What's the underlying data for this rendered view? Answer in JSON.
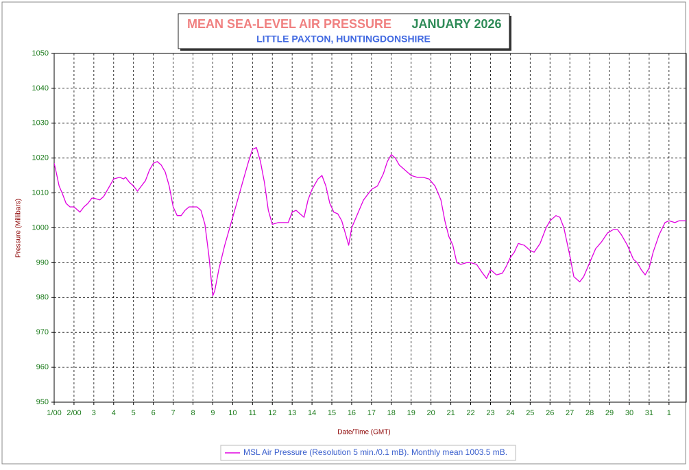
{
  "chart_data": {
    "type": "line",
    "title": "MEAN SEA-LEVEL AIR PRESSURE",
    "period": "JANUARY 2026",
    "subtitle": "LITTLE PAXTON, HUNTINGDONSHIRE",
    "x_label": "Date/Time (GMT)",
    "y_label": "Pressure (Millibars)",
    "xlim": [
      1,
      32.87
    ],
    "ylim": [
      950,
      1050
    ],
    "xticks": [
      {
        "value": 1,
        "label": "1/00"
      },
      {
        "value": 2,
        "label": "2/00"
      },
      3,
      4,
      5,
      6,
      7,
      8,
      9,
      10,
      11,
      12,
      13,
      14,
      15,
      16,
      17,
      18,
      19,
      20,
      21,
      22,
      23,
      24,
      25,
      26,
      27,
      28,
      29,
      30,
      31,
      {
        "value": 32,
        "label": "1"
      }
    ],
    "yticks": [
      950,
      960,
      970,
      980,
      990,
      1000,
      1010,
      1020,
      1030,
      1040,
      1050
    ],
    "grid": true,
    "series": [
      {
        "name": "MSL Air Pressure (Resolution 5 min./0.1 mB). Monthly mean 1003.5 mB.",
        "color": "#e000e0",
        "x": [
          1.0,
          1.1,
          1.25,
          1.4,
          1.6,
          1.8,
          2.0,
          2.2,
          2.3,
          2.5,
          2.7,
          2.9,
          3.0,
          3.3,
          3.5,
          3.7,
          3.9,
          4.0,
          4.3,
          4.5,
          4.6,
          4.8,
          5.0,
          5.2,
          5.4,
          5.6,
          5.8,
          6.0,
          6.2,
          6.4,
          6.6,
          6.8,
          7.0,
          7.2,
          7.4,
          7.6,
          7.8,
          8.0,
          8.2,
          8.4,
          8.6,
          8.8,
          9.0,
          9.1,
          9.3,
          9.6,
          9.9,
          10.2,
          10.5,
          10.8,
          11.0,
          11.2,
          11.4,
          11.6,
          11.8,
          12.0,
          12.3,
          12.6,
          12.8,
          13.0,
          13.2,
          13.4,
          13.6,
          13.8,
          14.0,
          14.3,
          14.5,
          14.7,
          14.9,
          15.1,
          15.3,
          15.5,
          15.7,
          15.85,
          16.0,
          16.3,
          16.6,
          17.0,
          17.3,
          17.6,
          17.8,
          18.0,
          18.2,
          18.4,
          18.7,
          19.0,
          19.3,
          19.6,
          19.9,
          20.2,
          20.5,
          20.7,
          20.9,
          21.1,
          21.3,
          21.5,
          21.8,
          22.0,
          22.3,
          22.6,
          22.8,
          23.0,
          23.3,
          23.6,
          23.8,
          24.0,
          24.2,
          24.4,
          24.7,
          25.0,
          25.2,
          25.5,
          25.8,
          26.0,
          26.3,
          26.5,
          26.7,
          27.0,
          27.2,
          27.5,
          27.7,
          28.0,
          28.3,
          28.6,
          28.9,
          29.2,
          29.4,
          29.6,
          29.9,
          30.2,
          30.4,
          30.6,
          30.8,
          31.0,
          31.2,
          31.5,
          31.8,
          32.0,
          32.3,
          32.5,
          32.87
        ],
        "values": [
          1018.5,
          1016,
          1012,
          1010,
          1007,
          1006,
          1006,
          1005,
          1004.5,
          1006,
          1007,
          1008.5,
          1008.5,
          1008,
          1009,
          1011,
          1013,
          1014,
          1014.5,
          1014,
          1014.5,
          1013,
          1012,
          1010.5,
          1012,
          1013.5,
          1016.5,
          1018.5,
          1019,
          1018,
          1016,
          1012,
          1006,
          1003.5,
          1003.5,
          1005,
          1006,
          1006,
          1006,
          1005,
          1001,
          992,
          980.5,
          982,
          988,
          995,
          1001,
          1007,
          1013,
          1019,
          1022.5,
          1023,
          1019,
          1013,
          1005,
          1001,
          1001.5,
          1001.5,
          1001.5,
          1004.5,
          1005,
          1004,
          1003,
          1008,
          1011,
          1014,
          1015,
          1012,
          1007,
          1004.5,
          1004,
          1002,
          998,
          995,
          1000,
          1004,
          1008,
          1011,
          1012,
          1015.5,
          1019,
          1021,
          1020,
          1018,
          1016.5,
          1015,
          1014.5,
          1014.5,
          1014,
          1012,
          1008,
          1002,
          997.5,
          995,
          990,
          989.5,
          990,
          990,
          989.5,
          987,
          985.5,
          988,
          986.5,
          987,
          989,
          991.5,
          993,
          995.5,
          995,
          993.5,
          993,
          995.5,
          1000,
          1002,
          1003.5,
          1003,
          1000,
          992,
          986,
          984.5,
          986,
          990,
          994,
          996,
          998.5,
          999.5,
          999.5,
          998,
          995,
          991,
          990,
          988,
          986.5,
          988.5,
          993,
          998,
          1001.5,
          1002,
          1001.5,
          1002,
          1002
        ]
      }
    ]
  }
}
